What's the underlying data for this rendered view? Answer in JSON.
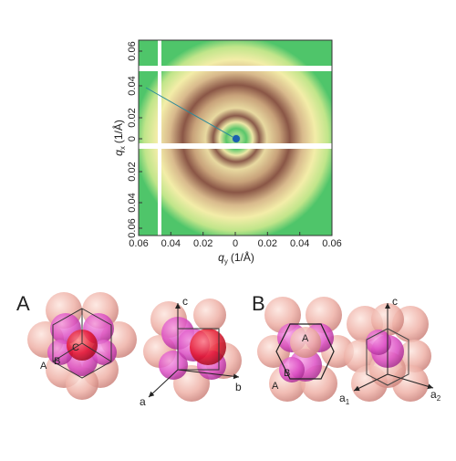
{
  "diffraction": {
    "y_axis_label": {
      "symbol": "q",
      "subscript": "x",
      "unit": "(1/Å)"
    },
    "x_axis_label": {
      "symbol": "q",
      "subscript": "y",
      "unit": "(1/Å)"
    },
    "x_ticks": [
      "0.06",
      "0.04",
      "0.02",
      "0",
      "0.02",
      "0.04",
      "0.06"
    ],
    "y_ticks": [
      "0.06",
      "0.04",
      "0.02",
      "0",
      "0.02",
      "0.04",
      "0.06"
    ]
  },
  "panel_a": {
    "label": "A",
    "layers": {
      "a": "A",
      "b": "B",
      "c": "C"
    },
    "axes": {
      "a": "a",
      "b": "b",
      "c": "c"
    }
  },
  "panel_b": {
    "label": "B",
    "layers": {
      "top": "A",
      "middle": "B",
      "bottom": "A"
    },
    "axes": {
      "c": "c",
      "a1": {
        "symbol": "a",
        "subscript": "1"
      },
      "a2": {
        "symbol": "a",
        "subscript": "2"
      }
    }
  }
}
